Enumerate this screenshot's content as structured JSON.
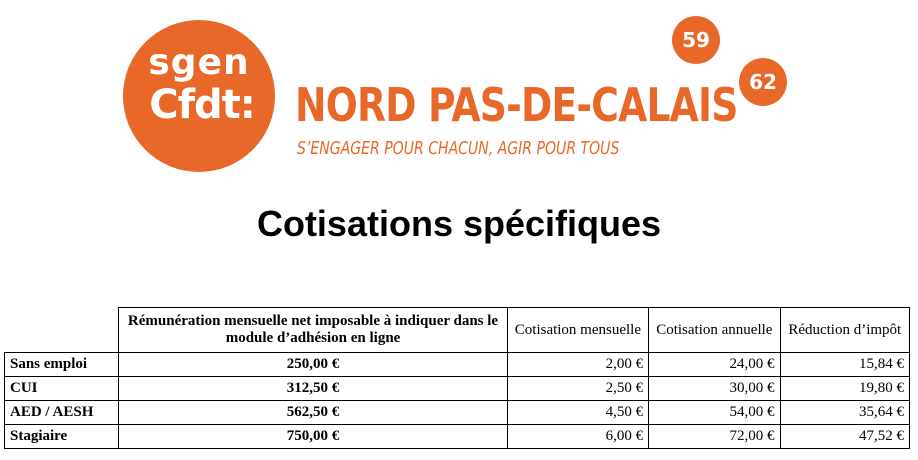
{
  "header": {
    "logo_line1": "sgen",
    "logo_line2": "Cfdt:",
    "region_title": "NORD PAS-DE-CALAIS",
    "slogan": "S’ENGAGER POUR CHACUN, AGIR POUR TOUS",
    "dept_a": "59",
    "dept_b": "62",
    "brand_color": "#e8682a"
  },
  "title": "Cotisations spécifiques",
  "table": {
    "headers": {
      "remuneration": "Rémunération mensuelle net imposable à indiquer dans le module d’adhésion en ligne",
      "cotisation_mensuelle": "Cotisation mensuelle",
      "cotisation_annuelle": "Cotisation annuelle",
      "reduction_impot": "Réduction d’impôt"
    },
    "rows": [
      {
        "label": "Sans emploi",
        "remuneration": "250,00 €",
        "mensuelle": "2,00 €",
        "annuelle": "24,00 €",
        "reduction": "15,84 €"
      },
      {
        "label": "CUI",
        "remuneration": "312,50 €",
        "mensuelle": "2,50 €",
        "annuelle": "30,00 €",
        "reduction": "19,80 €"
      },
      {
        "label": "AED / AESH",
        "remuneration": "562,50 €",
        "mensuelle": "4,50 €",
        "annuelle": "54,00 €",
        "reduction": "35,64 €"
      },
      {
        "label": "Stagiaire",
        "remuneration": "750,00 €",
        "mensuelle": "6,00 €",
        "annuelle": "72,00 €",
        "reduction": "47,52 €"
      }
    ]
  }
}
